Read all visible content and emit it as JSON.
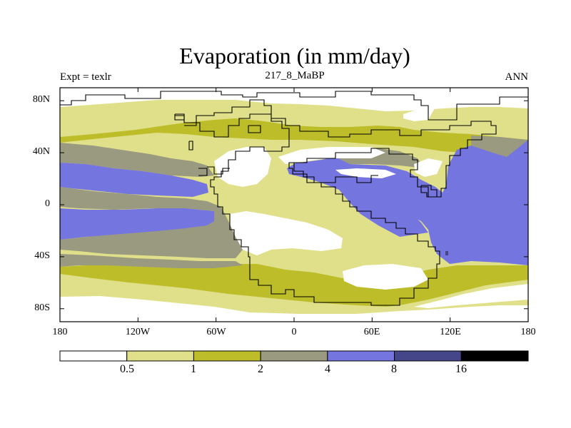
{
  "title": "Evaporation (in mm/day)",
  "subtitle": "217_8_MaBP",
  "left_label": "Expt = texlr",
  "right_label": "ANN",
  "map": {
    "projection": "cylindrical equidistant",
    "lon_range": [
      -180,
      180
    ],
    "lat_range": [
      -90,
      90
    ],
    "y_ticks": [
      {
        "value": 80,
        "label": "80N"
      },
      {
        "value": 40,
        "label": "40N"
      },
      {
        "value": 0,
        "label": "0"
      },
      {
        "value": -40,
        "label": "40S"
      },
      {
        "value": -80,
        "label": "80S"
      }
    ],
    "x_ticks": [
      {
        "value": -180,
        "label": "180"
      },
      {
        "value": -120,
        "label": "120W"
      },
      {
        "value": -60,
        "label": "60W"
      },
      {
        "value": 0,
        "label": "0"
      },
      {
        "value": 60,
        "label": "60E"
      },
      {
        "value": 120,
        "label": "120E"
      },
      {
        "value": 180,
        "label": "180"
      }
    ]
  },
  "colorbar": {
    "colors": [
      "#ffffff",
      "#e0e08a",
      "#bdbd2a",
      "#9a9a80",
      "#7575e0",
      "#45458a",
      "#000000"
    ],
    "labels": [
      "0.5",
      "1",
      "2",
      "4",
      "8",
      "16"
    ]
  }
}
